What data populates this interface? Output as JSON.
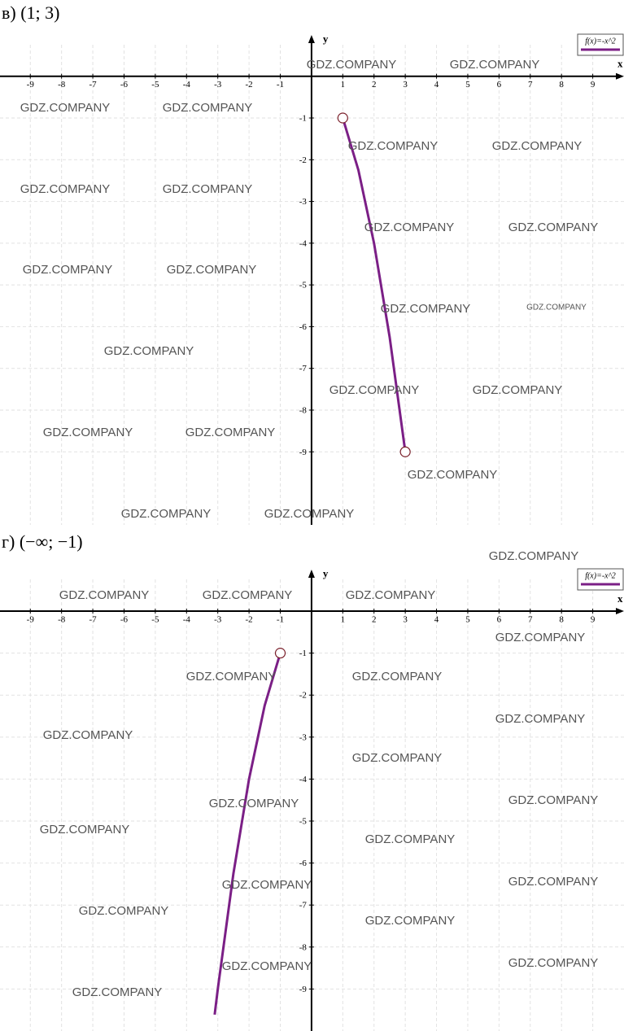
{
  "watermark": "GDZ.COMPANY",
  "chart_data": [
    {
      "type": "line",
      "title": "в) (1; 3)",
      "x_label": "x",
      "y_label": "y",
      "x": [
        1,
        1.5,
        2,
        2.5,
        3
      ],
      "series": [
        {
          "name": "f(x)=-x^2",
          "color": "#7b1f86",
          "values": [
            -1,
            -2.25,
            -4,
            -6.25,
            -9
          ]
        }
      ],
      "xlim": [
        -9.97,
        10
      ],
      "ylim": [
        -10.75,
        0.95
      ],
      "xticks": [
        -9,
        -8,
        -7,
        -6,
        -5,
        -4,
        -3,
        -2,
        -1,
        1,
        2,
        3,
        4,
        5,
        6,
        7,
        8,
        9
      ],
      "yticks": [
        -1,
        -2,
        -3,
        -4,
        -5,
        -6,
        -7,
        -8,
        -9
      ],
      "grid": true,
      "legend": "top-right"
    },
    {
      "type": "line",
      "title": "г) (−∞; −1)",
      "x_label": "x",
      "y_label": "y",
      "x": [
        -3.1,
        -3,
        -2.5,
        -2,
        -1.5,
        -1
      ],
      "series": [
        {
          "name": "f(x)=-x^2",
          "color": "#7b1f86",
          "values": [
            -9.61,
            -9,
            -6.25,
            -4,
            -2.25,
            -1
          ]
        }
      ],
      "xlim": [
        -9.97,
        10
      ],
      "ylim": [
        -10,
        0.95
      ],
      "xticks": [
        -9,
        -8,
        -7,
        -6,
        -5,
        -4,
        -3,
        -2,
        -1,
        1,
        2,
        3,
        4,
        5,
        6,
        7,
        8,
        9
      ],
      "yticks": [
        -1,
        -2,
        -3,
        -4,
        -5,
        -6,
        -7,
        -8,
        -9
      ],
      "grid": true,
      "legend": "top-right"
    }
  ]
}
